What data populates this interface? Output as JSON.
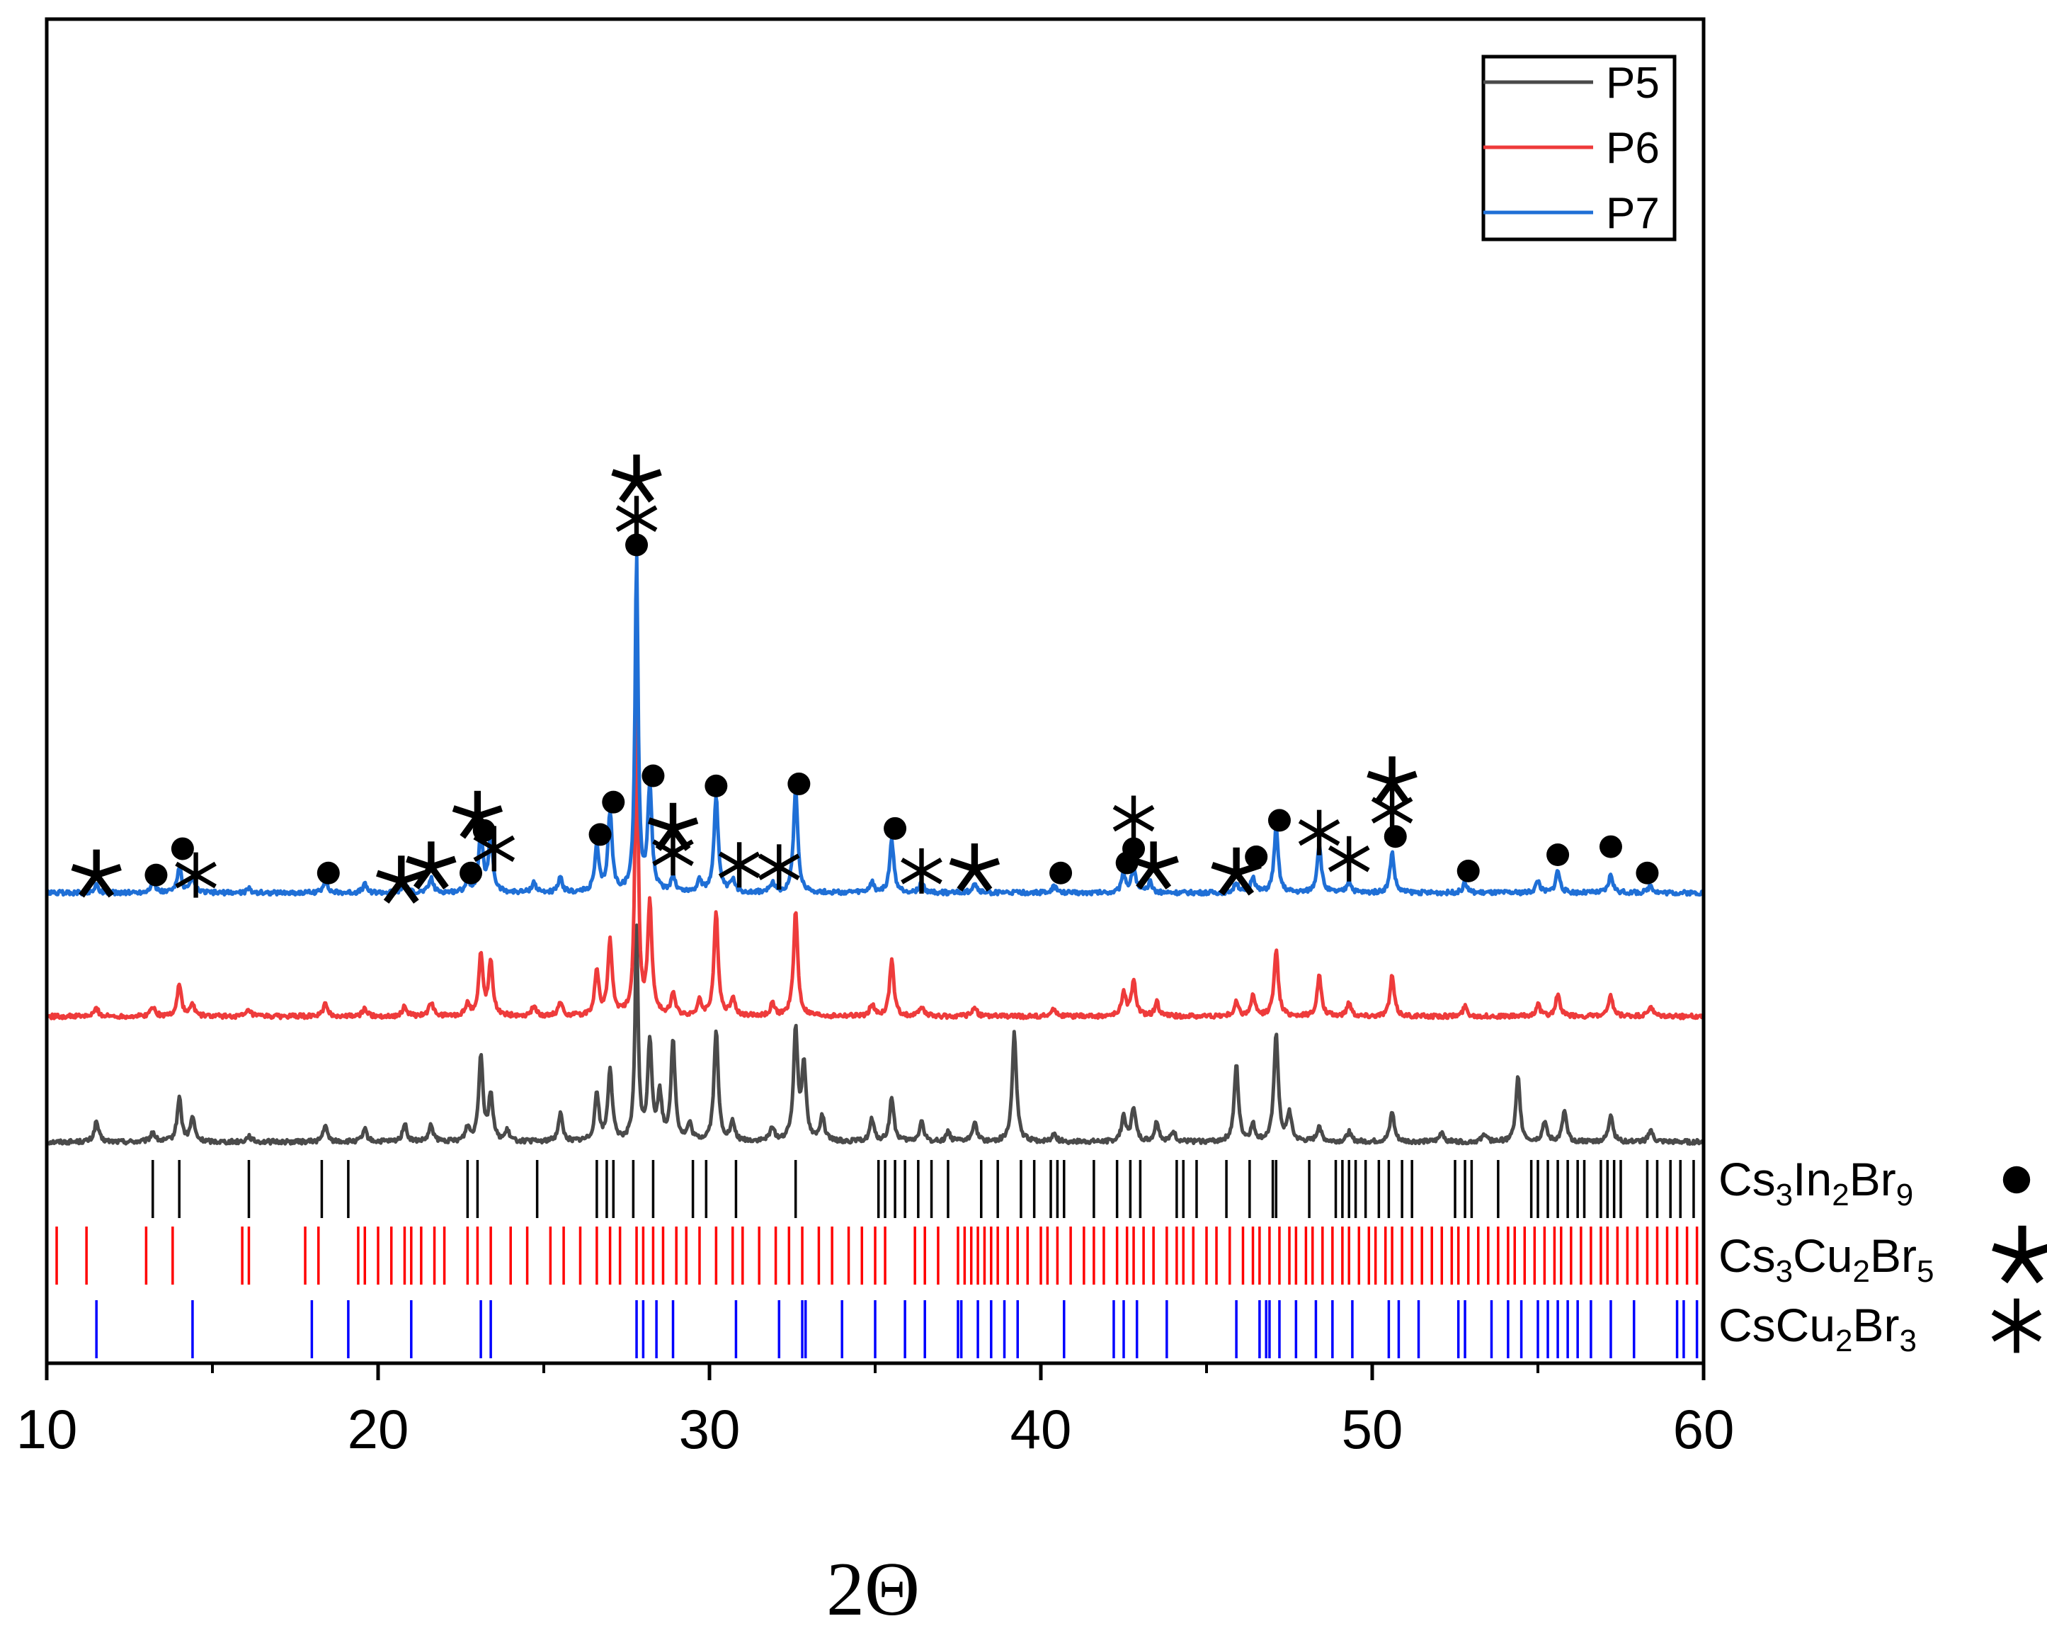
{
  "chart_data": {
    "type": "line",
    "title": "",
    "xlabel": "2Θ",
    "ylabel": "",
    "xlim": [
      10,
      60
    ],
    "xticks": [
      "10",
      "20",
      "30",
      "40",
      "50",
      "60"
    ],
    "grid": false,
    "legend_position": "top-right",
    "series": [
      {
        "name": "P5",
        "color": "#4a4a4a",
        "baseline": 0.0,
        "peaks": [
          [
            11.5,
            0.1
          ],
          [
            13.2,
            0.05
          ],
          [
            14.0,
            0.22
          ],
          [
            14.4,
            0.12
          ],
          [
            16.1,
            0.03
          ],
          [
            18.4,
            0.08
          ],
          [
            19.6,
            0.06
          ],
          [
            20.8,
            0.09
          ],
          [
            21.6,
            0.08
          ],
          [
            22.7,
            0.07
          ],
          [
            23.1,
            0.43
          ],
          [
            23.4,
            0.23
          ],
          [
            23.9,
            0.05
          ],
          [
            25.5,
            0.14
          ],
          [
            26.6,
            0.24
          ],
          [
            27.0,
            0.36
          ],
          [
            27.8,
            1.05
          ],
          [
            28.2,
            0.49
          ],
          [
            28.5,
            0.22
          ],
          [
            28.9,
            0.49
          ],
          [
            29.4,
            0.08
          ],
          [
            30.2,
            0.55
          ],
          [
            30.7,
            0.09
          ],
          [
            31.9,
            0.07
          ],
          [
            32.6,
            0.55
          ],
          [
            32.85,
            0.38
          ],
          [
            33.4,
            0.13
          ],
          [
            34.9,
            0.11
          ],
          [
            35.5,
            0.22
          ],
          [
            36.4,
            0.1
          ],
          [
            37.2,
            0.05
          ],
          [
            38.0,
            0.1
          ],
          [
            39.2,
            0.54
          ],
          [
            40.4,
            0.04
          ],
          [
            42.5,
            0.13
          ],
          [
            42.8,
            0.17
          ],
          [
            43.5,
            0.1
          ],
          [
            44.0,
            0.05
          ],
          [
            45.9,
            0.38
          ],
          [
            46.4,
            0.08
          ],
          [
            47.1,
            0.54
          ],
          [
            47.5,
            0.14
          ],
          [
            48.4,
            0.08
          ],
          [
            49.3,
            0.05
          ],
          [
            50.6,
            0.15
          ],
          [
            52.1,
            0.05
          ],
          [
            53.4,
            0.04
          ],
          [
            54.4,
            0.32
          ],
          [
            55.2,
            0.1
          ],
          [
            55.8,
            0.15
          ],
          [
            57.2,
            0.14
          ],
          [
            58.4,
            0.06
          ]
        ]
      },
      {
        "name": "P6",
        "color": "#ee3b3b",
        "baseline": 0.62,
        "peaks": [
          [
            11.5,
            0.04
          ],
          [
            13.2,
            0.05
          ],
          [
            14.0,
            0.16
          ],
          [
            14.4,
            0.06
          ],
          [
            16.1,
            0.03
          ],
          [
            18.4,
            0.06
          ],
          [
            19.6,
            0.04
          ],
          [
            20.8,
            0.05
          ],
          [
            21.6,
            0.07
          ],
          [
            22.7,
            0.06
          ],
          [
            23.1,
            0.3
          ],
          [
            23.4,
            0.27
          ],
          [
            24.7,
            0.05
          ],
          [
            25.5,
            0.07
          ],
          [
            26.6,
            0.22
          ],
          [
            27.0,
            0.37
          ],
          [
            27.8,
            1.6
          ],
          [
            28.2,
            0.55
          ],
          [
            28.9,
            0.11
          ],
          [
            29.7,
            0.07
          ],
          [
            30.2,
            0.51
          ],
          [
            30.7,
            0.09
          ],
          [
            31.9,
            0.06
          ],
          [
            32.6,
            0.52
          ],
          [
            34.9,
            0.06
          ],
          [
            35.5,
            0.28
          ],
          [
            36.4,
            0.05
          ],
          [
            38.0,
            0.05
          ],
          [
            40.4,
            0.04
          ],
          [
            42.5,
            0.12
          ],
          [
            42.8,
            0.18
          ],
          [
            43.5,
            0.07
          ],
          [
            45.9,
            0.07
          ],
          [
            46.4,
            0.1
          ],
          [
            47.1,
            0.33
          ],
          [
            48.4,
            0.2
          ],
          [
            49.3,
            0.07
          ],
          [
            50.6,
            0.2
          ],
          [
            52.8,
            0.05
          ],
          [
            55.0,
            0.06
          ],
          [
            55.6,
            0.11
          ],
          [
            57.2,
            0.1
          ],
          [
            58.4,
            0.05
          ]
        ]
      },
      {
        "name": "P7",
        "color": "#1f6fd6",
        "baseline": 1.23,
        "peaks": [
          [
            11.5,
            0.04
          ],
          [
            13.2,
            0.06
          ],
          [
            14.0,
            0.13
          ],
          [
            14.4,
            0.07
          ],
          [
            16.1,
            0.02
          ],
          [
            18.4,
            0.06
          ],
          [
            19.6,
            0.04
          ],
          [
            20.8,
            0.05
          ],
          [
            21.6,
            0.07
          ],
          [
            22.7,
            0.06
          ],
          [
            23.1,
            0.3
          ],
          [
            23.4,
            0.27
          ],
          [
            24.7,
            0.05
          ],
          [
            25.5,
            0.07
          ],
          [
            26.6,
            0.22
          ],
          [
            27.0,
            0.39
          ],
          [
            27.8,
            1.66
          ],
          [
            28.2,
            0.52
          ],
          [
            28.9,
            0.08
          ],
          [
            29.7,
            0.06
          ],
          [
            30.2,
            0.48
          ],
          [
            30.7,
            0.06
          ],
          [
            31.9,
            0.05
          ],
          [
            32.6,
            0.52
          ],
          [
            34.9,
            0.05
          ],
          [
            35.5,
            0.26
          ],
          [
            36.4,
            0.05
          ],
          [
            38.0,
            0.05
          ],
          [
            40.4,
            0.03
          ],
          [
            42.5,
            0.09
          ],
          [
            42.8,
            0.13
          ],
          [
            43.3,
            0.05
          ],
          [
            45.9,
            0.05
          ],
          [
            46.4,
            0.08
          ],
          [
            47.1,
            0.32
          ],
          [
            48.4,
            0.24
          ],
          [
            49.3,
            0.06
          ],
          [
            50.6,
            0.2
          ],
          [
            52.8,
            0.05
          ],
          [
            55.0,
            0.06
          ],
          [
            55.6,
            0.11
          ],
          [
            57.2,
            0.09
          ],
          [
            58.4,
            0.04
          ]
        ]
      }
    ],
    "markers": [
      {
        "symbol": "star",
        "x": 11.5,
        "y": 1.33
      },
      {
        "symbol": "dot",
        "x": 13.3,
        "y": 1.33
      },
      {
        "symbol": "dot",
        "x": 14.1,
        "y": 1.46
      },
      {
        "symbol": "asterisk",
        "x": 14.5,
        "y": 1.33
      },
      {
        "symbol": "dot",
        "x": 18.5,
        "y": 1.34
      },
      {
        "symbol": "star",
        "x": 20.7,
        "y": 1.3
      },
      {
        "symbol": "star",
        "x": 21.6,
        "y": 1.37
      },
      {
        "symbol": "dot",
        "x": 22.8,
        "y": 1.34
      },
      {
        "symbol": "star",
        "x": 23.0,
        "y": 1.62
      },
      {
        "symbol": "dot",
        "x": 23.2,
        "y": 1.55
      },
      {
        "symbol": "asterisk",
        "x": 23.5,
        "y": 1.46
      },
      {
        "symbol": "dot",
        "x": 26.7,
        "y": 1.53
      },
      {
        "symbol": "dot",
        "x": 27.1,
        "y": 1.69
      },
      {
        "symbol": "star",
        "x": 27.8,
        "y": 3.28
      },
      {
        "symbol": "asterisk",
        "x": 27.8,
        "y": 3.09
      },
      {
        "symbol": "dot",
        "x": 27.8,
        "y": 2.96
      },
      {
        "symbol": "dot",
        "x": 28.3,
        "y": 1.82
      },
      {
        "symbol": "star",
        "x": 28.9,
        "y": 1.56
      },
      {
        "symbol": "asterisk",
        "x": 28.9,
        "y": 1.44
      },
      {
        "symbol": "dot",
        "x": 30.2,
        "y": 1.77
      },
      {
        "symbol": "asterisk",
        "x": 30.9,
        "y": 1.38
      },
      {
        "symbol": "asterisk",
        "x": 32.1,
        "y": 1.37
      },
      {
        "symbol": "dot",
        "x": 32.7,
        "y": 1.78
      },
      {
        "symbol": "dot",
        "x": 35.6,
        "y": 1.56
      },
      {
        "symbol": "asterisk",
        "x": 36.4,
        "y": 1.35
      },
      {
        "symbol": "star",
        "x": 38.0,
        "y": 1.36
      },
      {
        "symbol": "dot",
        "x": 40.6,
        "y": 1.34
      },
      {
        "symbol": "dot",
        "x": 42.6,
        "y": 1.39
      },
      {
        "symbol": "asterisk",
        "x": 42.8,
        "y": 1.61
      },
      {
        "symbol": "dot",
        "x": 42.8,
        "y": 1.46
      },
      {
        "symbol": "star",
        "x": 43.4,
        "y": 1.37
      },
      {
        "symbol": "star",
        "x": 45.9,
        "y": 1.34
      },
      {
        "symbol": "dot",
        "x": 46.5,
        "y": 1.42
      },
      {
        "symbol": "dot",
        "x": 47.2,
        "y": 1.6
      },
      {
        "symbol": "asterisk",
        "x": 48.4,
        "y": 1.54
      },
      {
        "symbol": "asterisk",
        "x": 49.3,
        "y": 1.41
      },
      {
        "symbol": "star",
        "x": 50.6,
        "y": 1.79
      },
      {
        "symbol": "asterisk",
        "x": 50.6,
        "y": 1.65
      },
      {
        "symbol": "dot",
        "x": 50.7,
        "y": 1.52
      },
      {
        "symbol": "dot",
        "x": 52.9,
        "y": 1.35
      },
      {
        "symbol": "dot",
        "x": 55.6,
        "y": 1.43
      },
      {
        "symbol": "dot",
        "x": 57.2,
        "y": 1.47
      },
      {
        "symbol": "dot",
        "x": 58.3,
        "y": 1.34
      }
    ],
    "reference_patterns": [
      {
        "name": "Cs3In2Br9",
        "label_main": "Cs",
        "label_parts": [
          [
            "Cs",
            ""
          ],
          [
            "3",
            "sub"
          ],
          [
            "In",
            ""
          ],
          [
            "2",
            "sub"
          ],
          [
            "Br",
            ""
          ],
          [
            "9",
            "sub"
          ]
        ],
        "symbol": "dot",
        "color": "#000000",
        "lines": [
          13.2,
          14.0,
          16.1,
          18.3,
          19.1,
          22.7,
          23.0,
          24.8,
          26.6,
          26.9,
          27.1,
          27.7,
          28.3,
          29.5,
          29.9,
          30.8,
          32.6,
          35.1,
          35.3,
          35.6,
          35.9,
          36.3,
          36.7,
          37.2,
          38.2,
          38.7,
          39.4,
          39.8,
          40.3,
          40.5,
          40.7,
          41.6,
          42.3,
          42.7,
          43.0,
          44.1,
          44.3,
          44.7,
          45.6,
          46.3,
          47.0,
          47.1,
          48.1,
          48.9,
          49.1,
          49.3,
          49.5,
          49.8,
          50.2,
          50.5,
          50.9,
          51.2,
          52.5,
          52.8,
          53.0,
          53.8,
          54.8,
          55.0,
          55.3,
          55.6,
          55.9,
          56.2,
          56.4,
          56.9,
          57.1,
          57.3,
          57.5,
          58.3,
          58.6,
          59.0,
          59.3,
          59.7
        ]
      },
      {
        "name": "Cs3Cu2Br5",
        "label_main": "Cs",
        "label_parts": [
          [
            "Cs",
            ""
          ],
          [
            "3",
            "sub"
          ],
          [
            "Cu",
            ""
          ],
          [
            "2",
            "sub"
          ],
          [
            "Br",
            ""
          ],
          [
            "5",
            "sub"
          ]
        ],
        "symbol": "star",
        "color": "#ff0000",
        "lines": [
          10.3,
          11.2,
          13.0,
          13.8,
          15.9,
          16.1,
          17.8,
          18.2,
          19.4,
          19.6,
          20.0,
          20.4,
          20.8,
          21.0,
          21.3,
          21.7,
          22.0,
          22.7,
          23.0,
          23.4,
          24.0,
          24.5,
          25.2,
          25.6,
          26.1,
          26.6,
          27.0,
          27.3,
          27.8,
          28.0,
          28.3,
          28.6,
          29.0,
          29.3,
          29.7,
          30.2,
          30.7,
          31.0,
          31.5,
          32.0,
          32.4,
          32.8,
          33.3,
          33.7,
          34.2,
          34.6,
          35.0,
          35.3,
          36.2,
          36.5,
          36.9,
          37.5,
          37.7,
          37.9,
          38.1,
          38.3,
          38.5,
          38.7,
          39.0,
          39.3,
          39.6,
          40.0,
          40.2,
          40.5,
          40.9,
          41.3,
          41.6,
          41.9,
          42.3,
          42.6,
          42.8,
          43.1,
          43.4,
          43.8,
          44.1,
          44.3,
          44.6,
          45.0,
          45.3,
          45.7,
          46.1,
          46.4,
          46.6,
          46.9,
          47.2,
          47.5,
          47.7,
          48.0,
          48.2,
          48.5,
          48.8,
          49.1,
          49.3,
          49.6,
          49.9,
          50.1,
          50.4,
          50.6,
          50.9,
          51.2,
          51.5,
          51.8,
          52.1,
          52.4,
          52.6,
          52.9,
          53.2,
          53.5,
          53.8,
          54.1,
          54.3,
          54.6,
          54.9,
          55.2,
          55.5,
          55.7,
          56.0,
          56.3,
          56.6,
          56.9,
          57.1,
          57.4,
          57.7,
          58.0,
          58.3,
          58.6,
          58.9,
          59.2,
          59.5,
          59.8
        ]
      },
      {
        "name": "CsCu2Br3",
        "label_main": "Cs",
        "label_parts": [
          [
            "CsCu",
            ""
          ],
          [
            "2",
            "sub"
          ],
          [
            "Br",
            ""
          ],
          [
            "3",
            "sub"
          ]
        ],
        "symbol": "asterisk",
        "color": "#0000ff",
        "lines": [
          11.5,
          14.4,
          18.0,
          19.1,
          21.0,
          23.1,
          23.4,
          27.8,
          28.0,
          28.4,
          28.9,
          30.8,
          32.1,
          32.8,
          32.9,
          34.0,
          35.0,
          35.9,
          36.5,
          37.5,
          37.6,
          38.1,
          38.5,
          38.9,
          39.3,
          40.7,
          42.2,
          42.5,
          42.9,
          43.8,
          45.9,
          46.6,
          46.8,
          46.9,
          47.2,
          47.7,
          48.3,
          48.8,
          49.4,
          50.5,
          50.8,
          51.4,
          52.6,
          52.8,
          53.6,
          54.1,
          54.5,
          55.0,
          55.3,
          55.6,
          55.9,
          56.2,
          56.6,
          57.2,
          57.9,
          59.2,
          59.4,
          59.8
        ]
      }
    ]
  }
}
